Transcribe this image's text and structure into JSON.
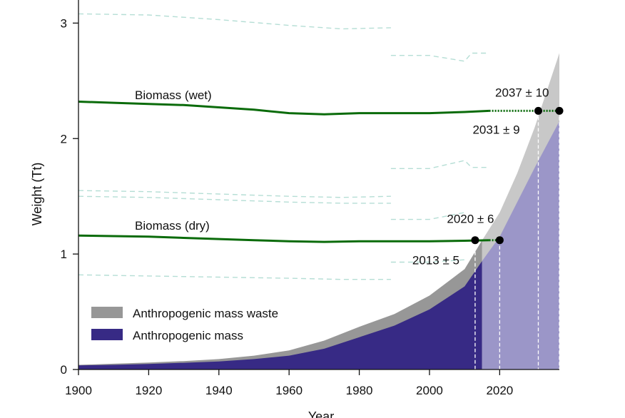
{
  "chart_data": {
    "type": "area",
    "title": "",
    "xlabel": "Year",
    "ylabel": "Weight (Tt)",
    "xlim": [
      1900,
      2037
    ],
    "ylim": [
      0,
      3.2
    ],
    "xticks": [
      1900,
      1920,
      1940,
      1960,
      1980,
      2000,
      2020
    ],
    "yticks": [
      0,
      1,
      2,
      3
    ],
    "x_tick_labels": [
      "1900",
      "1920",
      "1940",
      "1960",
      "1980",
      "2000",
      "2020"
    ],
    "y_tick_labels": [
      "0",
      "1",
      "2",
      "3"
    ],
    "grid": false,
    "legend": {
      "position": "bottom-left",
      "items": [
        "Anthropogenic mass waste",
        "Anthropogenic mass"
      ]
    },
    "colors": {
      "anthropogenic_mass": "#372a85",
      "anthropogenic_mass_projected": "#9b96c8",
      "mass_waste": "#979797",
      "mass_waste_projected": "#c8c8c8",
      "biomass": "#0a6b0a",
      "uncertainty_band": "#b5ded5",
      "marker": "#000000",
      "dashed_guide": "#ffffff"
    },
    "series": [
      {
        "name": "Anthropogenic mass",
        "kind": "stacked-area",
        "x": [
          1900,
          1910,
          1920,
          1930,
          1940,
          1950,
          1960,
          1970,
          1980,
          1990,
          2000,
          2010,
          2015
        ],
        "values": [
          0.035,
          0.04,
          0.048,
          0.058,
          0.07,
          0.09,
          0.12,
          0.18,
          0.28,
          0.38,
          0.52,
          0.72,
          0.94
        ]
      },
      {
        "name": "Anthropogenic mass waste",
        "kind": "stacked-area",
        "x": [
          1900,
          1910,
          1920,
          1930,
          1940,
          1950,
          1960,
          1970,
          1980,
          1990,
          2000,
          2010,
          2015
        ],
        "values": [
          0.005,
          0.01,
          0.012,
          0.015,
          0.02,
          0.03,
          0.045,
          0.07,
          0.09,
          0.1,
          0.12,
          0.15,
          0.18
        ]
      },
      {
        "name": "Biomass (wet)",
        "kind": "line",
        "x": [
          1900,
          1910,
          1920,
          1930,
          1940,
          1950,
          1960,
          1970,
          1980,
          1990,
          2000,
          2010,
          2017
        ],
        "values": [
          2.32,
          2.31,
          2.3,
          2.29,
          2.27,
          2.25,
          2.22,
          2.21,
          2.22,
          2.22,
          2.22,
          2.23,
          2.24
        ]
      },
      {
        "name": "Biomass (dry)",
        "kind": "line",
        "x": [
          1900,
          1910,
          1920,
          1930,
          1940,
          1950,
          1960,
          1970,
          1980,
          1990,
          2000,
          2010,
          2017
        ],
        "values": [
          1.16,
          1.155,
          1.15,
          1.14,
          1.13,
          1.12,
          1.11,
          1.105,
          1.11,
          1.11,
          1.11,
          1.115,
          1.12
        ]
      }
    ],
    "projection": {
      "x": [
        2015,
        2020,
        2025,
        2030,
        2037
      ],
      "mass_top": [
        0.94,
        1.15,
        1.45,
        1.75,
        2.15
      ],
      "total_top": [
        1.12,
        1.36,
        1.7,
        2.1,
        2.74
      ]
    },
    "uncertainty_bands": [
      {
        "x": [
          1900,
          1920,
          1940,
          1960,
          1975,
          1989
        ],
        "values": [
          3.08,
          3.07,
          3.03,
          2.98,
          2.95,
          2.96
        ]
      },
      {
        "x": [
          1900,
          1920,
          1940,
          1960,
          1975,
          1989
        ],
        "values": [
          1.55,
          1.54,
          1.52,
          1.5,
          1.49,
          1.5
        ]
      },
      {
        "x": [
          1900,
          1920,
          1940,
          1960,
          1975,
          1989
        ],
        "values": [
          1.5,
          1.49,
          1.47,
          1.45,
          1.44,
          1.44
        ]
      },
      {
        "x": [
          1900,
          1920,
          1940,
          1960,
          1975,
          1989
        ],
        "values": [
          0.82,
          0.81,
          0.8,
          0.79,
          0.78,
          0.78
        ]
      },
      {
        "x": [
          1989,
          2000,
          2010,
          2012,
          2017
        ],
        "values": [
          2.72,
          2.72,
          2.67,
          2.74,
          2.74
        ]
      },
      {
        "x": [
          1989,
          2000,
          2010,
          2012,
          2017
        ],
        "values": [
          1.74,
          1.74,
          1.81,
          1.75,
          1.75
        ]
      },
      {
        "x": [
          1989,
          2000,
          2010
        ],
        "values": [
          1.3,
          1.3,
          1.36
        ]
      },
      {
        "x": [
          1989,
          2000,
          2010
        ],
        "values": [
          0.93,
          0.93,
          0.95
        ]
      }
    ],
    "crossovers": [
      {
        "year": 2013,
        "value": 1.12,
        "label": "2013 ± 5"
      },
      {
        "year": 2020,
        "value": 1.12,
        "label": "2020 ± 6"
      },
      {
        "year": 2031,
        "value": 2.24,
        "label": "2031 ± 9"
      },
      {
        "year": 2037,
        "value": 2.24,
        "label": "2037 ± 10"
      }
    ],
    "series_labels": {
      "wet": "Biomass (wet)",
      "dry": "Biomass (dry)"
    }
  }
}
